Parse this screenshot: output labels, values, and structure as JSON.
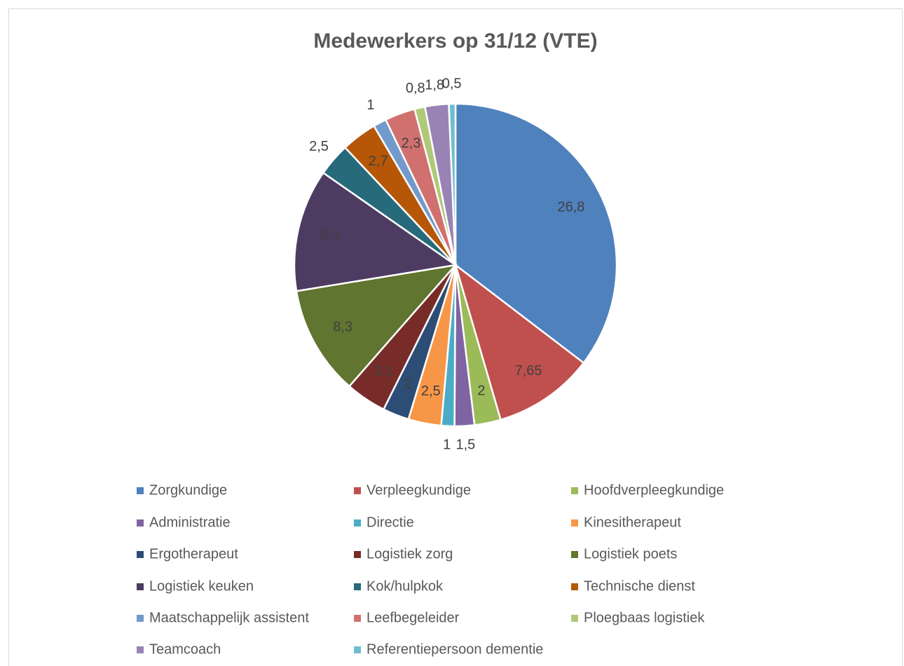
{
  "chart_data": {
    "type": "pie",
    "title": "Medewerkers op 31/12 (VTE)",
    "categories": [
      "Zorgkundige",
      "Verpleegkundige",
      "Hoofdverpleegkundige",
      "Administratie",
      "Directie",
      "Kinesitherapeut",
      "Ergotherapeut",
      "Logistiek zorg",
      "Logistiek poets",
      "Logistiek keuken",
      "Kok/hulpkok",
      "Technische dienst",
      "Maatschappelijk assistent",
      "Leefbegeleider",
      "Ploegbaas logistiek",
      "Teamcoach",
      "Referentiepersoon dementie"
    ],
    "values": [
      26.8,
      7.65,
      2,
      1.5,
      1,
      2.5,
      2,
      3.1,
      8.3,
      9.3,
      2.5,
      2.7,
      1,
      2.3,
      0.8,
      1.8,
      0.5
    ],
    "value_labels": [
      "26,8",
      "7,65",
      "2",
      "1,5",
      "1",
      "2,5",
      "2",
      "3,1",
      "8,3",
      "9,3",
      "2,5",
      "2,7",
      "1",
      "2,3",
      "0,8",
      "1,8",
      "0,5"
    ],
    "colors": [
      "#4f81bd",
      "#c0504d",
      "#9bbb59",
      "#8064a2",
      "#4bacc6",
      "#f79646",
      "#2c4d75",
      "#772c2a",
      "#5f7530",
      "#4d3b62",
      "#276a7c",
      "#b65708",
      "#729aca",
      "#d1716f",
      "#afc97a",
      "#9983b5",
      "#6fbdd1"
    ],
    "legend": "bottom"
  }
}
